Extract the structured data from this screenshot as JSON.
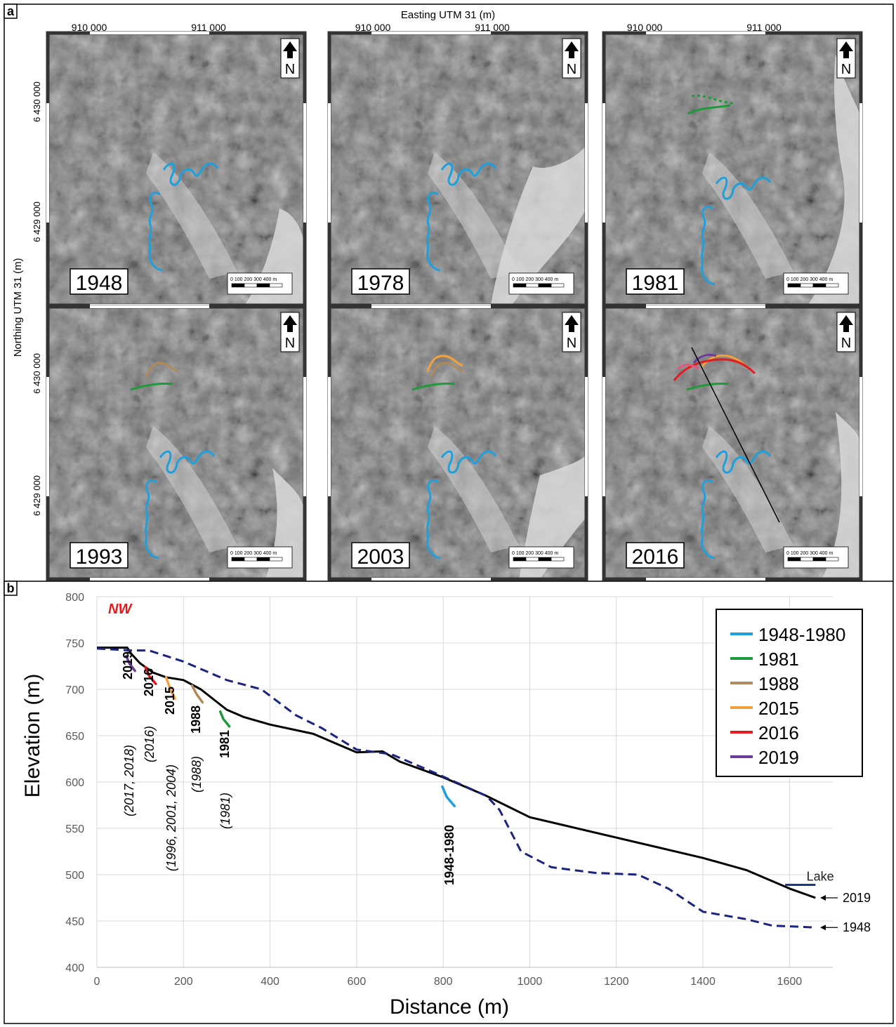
{
  "panel_a": {
    "label": "a",
    "x_axis_title": "Easting UTM 31 (m)",
    "y_axis_title": "Northing UTM 31 (m)",
    "easting_ticks": [
      "910 000",
      "911 000"
    ],
    "northing_ticks": [
      "6 430 000",
      "6 429 000"
    ],
    "north_label": "N",
    "scalebar_text": "0   100 200 300 400 m",
    "maps": [
      {
        "year": "1948"
      },
      {
        "year": "1978"
      },
      {
        "year": "1981"
      },
      {
        "year": "1993"
      },
      {
        "year": "2003"
      },
      {
        "year": "2016"
      }
    ],
    "scarp_colors": {
      "1948-1980": "#1ea0dc",
      "1981": "#1f9a3a",
      "1988": "#b08a5a",
      "2015": "#f4a03c",
      "2016": "#e41a1c",
      "2019": "#6a3d9a",
      "pink": "#e75480"
    }
  },
  "panel_b": {
    "label": "b",
    "direction_label": "NW",
    "annotations": {
      "lake": "Lake",
      "profile_2019": "2019",
      "profile_1948": "1948",
      "scarps": [
        {
          "year": "2019",
          "detail": "(2017, 2018)"
        },
        {
          "year": "2016",
          "detail": "(2016)"
        },
        {
          "year": "2015",
          "detail": "(1996, 2001, 2004)"
        },
        {
          "year": "1988",
          "detail": "(1988)"
        },
        {
          "year": "1981",
          "detail": "(1981)"
        },
        {
          "year": "1948-1980",
          "detail": ""
        }
      ]
    }
  },
  "chart_data": {
    "type": "line",
    "xlabel": "Distance (m)",
    "ylabel": "Elevation (m)",
    "xlim": [
      0,
      1700
    ],
    "ylim": [
      400,
      800
    ],
    "xticks": [
      0,
      200,
      400,
      600,
      800,
      1000,
      1200,
      1400,
      1600
    ],
    "yticks": [
      400,
      450,
      500,
      550,
      600,
      650,
      700,
      750,
      800
    ],
    "grid": true,
    "legend_position": "top-right",
    "series": [
      {
        "name": "2019",
        "color": "#000000",
        "style": "solid",
        "x": [
          0,
          70,
          80,
          100,
          130,
          160,
          200,
          240,
          300,
          340,
          400,
          500,
          550,
          600,
          660,
          700,
          800,
          900,
          1000,
          1200,
          1400,
          1500,
          1600,
          1660
        ],
        "y": [
          745,
          745,
          738,
          728,
          718,
          713,
          710,
          700,
          678,
          670,
          662,
          652,
          642,
          632,
          633,
          622,
          605,
          585,
          562,
          540,
          518,
          505,
          485,
          475
        ]
      },
      {
        "name": "1948",
        "color": "#1a237e",
        "style": "dashed",
        "x": [
          0,
          80,
          120,
          200,
          300,
          380,
          460,
          520,
          600,
          680,
          780,
          900,
          930,
          980,
          1050,
          1150,
          1250,
          1320,
          1400,
          1500,
          1560,
          1660
        ],
        "y": [
          744,
          742,
          742,
          730,
          710,
          700,
          672,
          658,
          635,
          630,
          610,
          585,
          570,
          525,
          508,
          502,
          500,
          485,
          460,
          452,
          445,
          443
        ]
      }
    ],
    "legend": [
      {
        "label": "1948-1980",
        "color": "#1ea0dc"
      },
      {
        "label": "1981",
        "color": "#1f9a3a"
      },
      {
        "label": "1988",
        "color": "#b08a5a"
      },
      {
        "label": "2015",
        "color": "#f4a03c"
      },
      {
        "label": "2016",
        "color": "#e41a1c"
      },
      {
        "label": "2019",
        "color": "#6a3d9a"
      }
    ],
    "scarps": [
      {
        "year": "2019",
        "x": [
          68,
          75,
          88
        ],
        "y": [
          736,
          728,
          720
        ],
        "color": "#6a3d9a"
      },
      {
        "year": "2016",
        "x": [
          112,
          120,
          136
        ],
        "y": [
          724,
          715,
          706
        ],
        "color": "#e41a1c"
      },
      {
        "year": "2015",
        "x": [
          160,
          168,
          180
        ],
        "y": [
          713,
          702,
          690
        ],
        "color": "#f4a03c"
      },
      {
        "year": "1988",
        "x": [
          220,
          230,
          244
        ],
        "y": [
          704,
          695,
          686
        ],
        "color": "#b08a5a"
      },
      {
        "year": "1981",
        "x": [
          285,
          292,
          306
        ],
        "y": [
          676,
          668,
          660
        ],
        "color": "#1f9a3a"
      },
      {
        "year": "1948-1980",
        "x": [
          798,
          808,
          826
        ],
        "y": [
          595,
          584,
          574
        ],
        "color": "#1ea0dc"
      }
    ],
    "lake": {
      "x": [
        1590,
        1660
      ],
      "y": [
        489,
        489
      ],
      "color": "#1a3a8c"
    }
  }
}
